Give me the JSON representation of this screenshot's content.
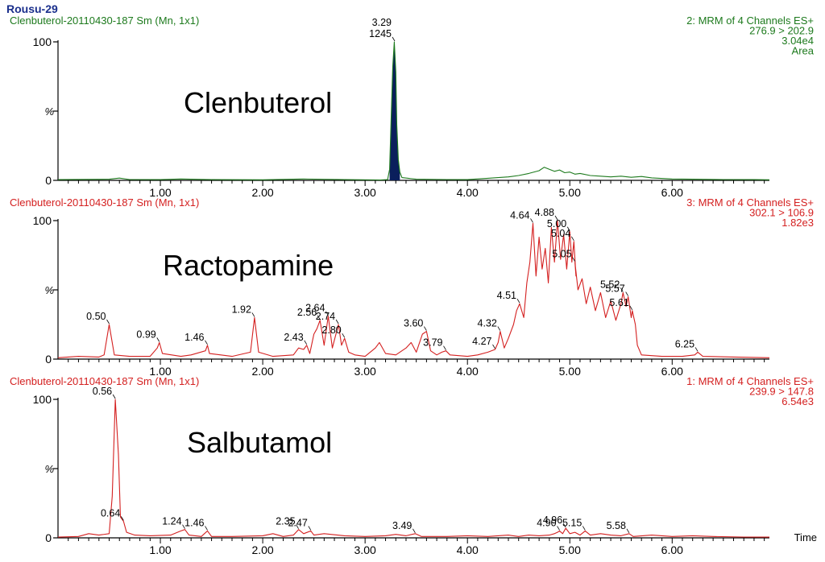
{
  "window_title": "Rousu-29",
  "axis_label": "Time",
  "y_tick_labels": [
    "100",
    "%",
    "0"
  ],
  "colors": {
    "title": "#1a2f8c",
    "green": "#1d7a1d",
    "red": "#d42020",
    "fill": "#0a1f5c",
    "axis": "#000000"
  },
  "chart_data": [
    {
      "type": "line",
      "panel": "top",
      "color": "green",
      "sample_label": "Clenbuterol-20110430-187 Sm (Mn, 1x1)",
      "header_right": [
        "2: MRM of 4 Channels ES+",
        "276.9 > 202.9",
        "3.04e4",
        "Area"
      ],
      "compound": "Clenbuterol",
      "xlim": [
        0.0,
        6.95
      ],
      "ylim": [
        0,
        100
      ],
      "x_ticks": [
        "1.00",
        "2.00",
        "3.00",
        "4.00",
        "5.00",
        "6.00"
      ],
      "trace": [
        [
          0.0,
          0.5
        ],
        [
          0.5,
          0.8
        ],
        [
          0.6,
          1.6
        ],
        [
          0.7,
          0.6
        ],
        [
          1.0,
          0.5
        ],
        [
          1.2,
          1.0
        ],
        [
          1.5,
          0.5
        ],
        [
          2.0,
          0.4
        ],
        [
          2.4,
          1.0
        ],
        [
          2.8,
          0.5
        ],
        [
          3.15,
          0.3
        ],
        [
          3.22,
          0.5
        ],
        [
          3.24,
          8
        ],
        [
          3.255,
          45
        ],
        [
          3.27,
          82
        ],
        [
          3.285,
          100
        ],
        [
          3.3,
          78
        ],
        [
          3.31,
          40
        ],
        [
          3.325,
          15
        ],
        [
          3.34,
          6
        ],
        [
          3.36,
          2
        ],
        [
          3.5,
          0.8
        ],
        [
          3.8,
          0.6
        ],
        [
          4.0,
          0.5
        ],
        [
          4.2,
          1.5
        ],
        [
          4.4,
          2.5
        ],
        [
          4.5,
          3.5
        ],
        [
          4.6,
          5
        ],
        [
          4.7,
          7
        ],
        [
          4.75,
          9.5
        ],
        [
          4.8,
          8
        ],
        [
          4.85,
          6.5
        ],
        [
          4.9,
          7.5
        ],
        [
          4.95,
          5.5
        ],
        [
          5.0,
          6
        ],
        [
          5.05,
          4.5
        ],
        [
          5.1,
          5
        ],
        [
          5.2,
          3.5
        ],
        [
          5.3,
          3
        ],
        [
          5.4,
          2.5
        ],
        [
          5.5,
          3
        ],
        [
          5.6,
          2.2
        ],
        [
          5.7,
          2.8
        ],
        [
          5.8,
          1.8
        ],
        [
          6.0,
          1
        ],
        [
          6.2,
          0.8
        ],
        [
          6.5,
          0.6
        ],
        [
          6.8,
          0.5
        ],
        [
          6.95,
          0.4
        ]
      ],
      "peak_fill": {
        "x_range": [
          3.24,
          3.34
        ]
      },
      "annotations": [
        {
          "x": 3.29,
          "y": 100,
          "lines": [
            "3.29",
            "1245"
          ]
        }
      ]
    },
    {
      "type": "line",
      "panel": "middle",
      "color": "red",
      "sample_label": "Clenbuterol-20110430-187 Sm (Mn, 1x1)",
      "header_right": [
        "3: MRM of 4 Channels ES+",
        "302.1 > 106.9",
        "1.82e3"
      ],
      "compound": "Ractopamine",
      "xlim": [
        0.0,
        6.95
      ],
      "ylim": [
        0,
        100
      ],
      "x_ticks": [
        "1.00",
        "2.00",
        "3.00",
        "4.00",
        "5.00",
        "6.00"
      ],
      "trace": [
        [
          0.0,
          1
        ],
        [
          0.2,
          2
        ],
        [
          0.4,
          1.5
        ],
        [
          0.45,
          3
        ],
        [
          0.5,
          25
        ],
        [
          0.55,
          3
        ],
        [
          0.7,
          2
        ],
        [
          0.9,
          2
        ],
        [
          0.97,
          8
        ],
        [
          0.99,
          12
        ],
        [
          1.02,
          4
        ],
        [
          1.2,
          2
        ],
        [
          1.3,
          3
        ],
        [
          1.44,
          6
        ],
        [
          1.46,
          10
        ],
        [
          1.48,
          4
        ],
        [
          1.7,
          2
        ],
        [
          1.88,
          5
        ],
        [
          1.92,
          30
        ],
        [
          1.96,
          5
        ],
        [
          2.1,
          2
        ],
        [
          2.3,
          3
        ],
        [
          2.35,
          8
        ],
        [
          2.4,
          7
        ],
        [
          2.43,
          10
        ],
        [
          2.46,
          4
        ],
        [
          2.5,
          18
        ],
        [
          2.53,
          22
        ],
        [
          2.56,
          28
        ],
        [
          2.6,
          10
        ],
        [
          2.64,
          31
        ],
        [
          2.68,
          8
        ],
        [
          2.74,
          25
        ],
        [
          2.77,
          10
        ],
        [
          2.8,
          15
        ],
        [
          2.84,
          5
        ],
        [
          2.9,
          3
        ],
        [
          3.0,
          2
        ],
        [
          3.1,
          8
        ],
        [
          3.14,
          12
        ],
        [
          3.2,
          4
        ],
        [
          3.3,
          3
        ],
        [
          3.4,
          8
        ],
        [
          3.45,
          12
        ],
        [
          3.5,
          5
        ],
        [
          3.56,
          18
        ],
        [
          3.6,
          20
        ],
        [
          3.64,
          6
        ],
        [
          3.7,
          3
        ],
        [
          3.75,
          5
        ],
        [
          3.79,
          6
        ],
        [
          3.83,
          3
        ],
        [
          4.0,
          2
        ],
        [
          4.1,
          3
        ],
        [
          4.2,
          5
        ],
        [
          4.27,
          7
        ],
        [
          4.3,
          12
        ],
        [
          4.32,
          20
        ],
        [
          4.36,
          8
        ],
        [
          4.4,
          15
        ],
        [
          4.45,
          25
        ],
        [
          4.48,
          35
        ],
        [
          4.51,
          40
        ],
        [
          4.55,
          30
        ],
        [
          4.58,
          55
        ],
        [
          4.61,
          70
        ],
        [
          4.64,
          98
        ],
        [
          4.67,
          60
        ],
        [
          4.7,
          88
        ],
        [
          4.73,
          65
        ],
        [
          4.76,
          80
        ],
        [
          4.79,
          55
        ],
        [
          4.82,
          95
        ],
        [
          4.85,
          70
        ],
        [
          4.88,
          100
        ],
        [
          4.91,
          72
        ],
        [
          4.94,
          90
        ],
        [
          4.97,
          65
        ],
        [
          5.0,
          92
        ],
        [
          5.02,
          70
        ],
        [
          5.04,
          85
        ],
        [
          5.06,
          60
        ],
        [
          5.05,
          70
        ],
        [
          5.08,
          50
        ],
        [
          5.12,
          58
        ],
        [
          5.16,
          40
        ],
        [
          5.2,
          52
        ],
        [
          5.25,
          35
        ],
        [
          5.3,
          48
        ],
        [
          5.35,
          30
        ],
        [
          5.4,
          42
        ],
        [
          5.45,
          28
        ],
        [
          5.5,
          40
        ],
        [
          5.52,
          48
        ],
        [
          5.55,
          38
        ],
        [
          5.57,
          45
        ],
        [
          5.6,
          30
        ],
        [
          5.61,
          35
        ],
        [
          5.64,
          25
        ],
        [
          5.66,
          10
        ],
        [
          5.7,
          3
        ],
        [
          5.9,
          2
        ],
        [
          6.1,
          2
        ],
        [
          6.22,
          3
        ],
        [
          6.25,
          5
        ],
        [
          6.3,
          2
        ],
        [
          6.6,
          1.5
        ],
        [
          6.95,
          1
        ]
      ],
      "annotations": [
        {
          "x": 0.5,
          "y": 25,
          "lines": [
            "0.50"
          ]
        },
        {
          "x": 0.99,
          "y": 12,
          "lines": [
            "0.99"
          ]
        },
        {
          "x": 1.46,
          "y": 10,
          "lines": [
            "1.46"
          ]
        },
        {
          "x": 1.92,
          "y": 30,
          "lines": [
            "1.92"
          ]
        },
        {
          "x": 2.43,
          "y": 10,
          "lines": [
            "2.43"
          ]
        },
        {
          "x": 2.56,
          "y": 28,
          "lines": [
            "2.56"
          ]
        },
        {
          "x": 2.64,
          "y": 31,
          "lines": [
            "2.64"
          ]
        },
        {
          "x": 2.74,
          "y": 25,
          "lines": [
            "2.74"
          ]
        },
        {
          "x": 2.8,
          "y": 15,
          "lines": [
            "2.80"
          ]
        },
        {
          "x": 3.6,
          "y": 20,
          "lines": [
            "3.60"
          ]
        },
        {
          "x": 3.79,
          "y": 6,
          "lines": [
            "3.79"
          ]
        },
        {
          "x": 4.27,
          "y": 7,
          "lines": [
            "4.27"
          ]
        },
        {
          "x": 4.32,
          "y": 20,
          "lines": [
            "4.32"
          ]
        },
        {
          "x": 4.51,
          "y": 40,
          "lines": [
            "4.51"
          ]
        },
        {
          "x": 4.64,
          "y": 98,
          "lines": [
            "4.64"
          ]
        },
        {
          "x": 4.88,
          "y": 100,
          "lines": [
            "4.88"
          ]
        },
        {
          "x": 5.0,
          "y": 92,
          "lines": [
            "5.00"
          ]
        },
        {
          "x": 5.04,
          "y": 85,
          "lines": [
            "5.04"
          ]
        },
        {
          "x": 5.05,
          "y": 70,
          "lines": [
            "5.05"
          ]
        },
        {
          "x": 5.52,
          "y": 48,
          "lines": [
            "5.52"
          ]
        },
        {
          "x": 5.57,
          "y": 45,
          "lines": [
            "5.57"
          ]
        },
        {
          "x": 5.61,
          "y": 35,
          "lines": [
            "5.61"
          ]
        },
        {
          "x": 6.25,
          "y": 5,
          "lines": [
            "6.25"
          ]
        }
      ]
    },
    {
      "type": "line",
      "panel": "bottom",
      "color": "red",
      "sample_label": "Clenbuterol-20110430-187 Sm (Mn, 1x1)",
      "header_right": [
        "1: MRM of 4 Channels ES+",
        "239.9 > 147.8",
        "6.54e3"
      ],
      "compound": "Salbutamol",
      "xlim": [
        0.0,
        6.95
      ],
      "ylim": [
        0,
        100
      ],
      "x_ticks": [
        "1.00",
        "2.00",
        "3.00",
        "4.00",
        "5.00",
        "6.00"
      ],
      "trace": [
        [
          0.0,
          0.5
        ],
        [
          0.2,
          1
        ],
        [
          0.3,
          3
        ],
        [
          0.4,
          2
        ],
        [
          0.5,
          3
        ],
        [
          0.53,
          30
        ],
        [
          0.56,
          100
        ],
        [
          0.59,
          60
        ],
        [
          0.61,
          15
        ],
        [
          0.64,
          12
        ],
        [
          0.67,
          4
        ],
        [
          0.75,
          2
        ],
        [
          0.9,
          1.5
        ],
        [
          1.1,
          2
        ],
        [
          1.2,
          5
        ],
        [
          1.24,
          6
        ],
        [
          1.28,
          2
        ],
        [
          1.4,
          1
        ],
        [
          1.46,
          5
        ],
        [
          1.5,
          1
        ],
        [
          1.7,
          1
        ],
        [
          2.0,
          1.5
        ],
        [
          2.1,
          3
        ],
        [
          2.2,
          1
        ],
        [
          2.3,
          2
        ],
        [
          2.35,
          6
        ],
        [
          2.4,
          3
        ],
        [
          2.47,
          5
        ],
        [
          2.5,
          2
        ],
        [
          2.6,
          3
        ],
        [
          2.8,
          1.5
        ],
        [
          3.0,
          1
        ],
        [
          3.2,
          1.5
        ],
        [
          3.3,
          2.5
        ],
        [
          3.4,
          1.5
        ],
        [
          3.49,
          3
        ],
        [
          3.55,
          1
        ],
        [
          3.8,
          1
        ],
        [
          4.0,
          1.5
        ],
        [
          4.2,
          1
        ],
        [
          4.4,
          2
        ],
        [
          4.5,
          1
        ],
        [
          4.6,
          2
        ],
        [
          4.7,
          1.5
        ],
        [
          4.8,
          2
        ],
        [
          4.85,
          3
        ],
        [
          4.88,
          4
        ],
        [
          4.9,
          5
        ],
        [
          4.93,
          3
        ],
        [
          4.96,
          7
        ],
        [
          5.0,
          3
        ],
        [
          5.05,
          4
        ],
        [
          5.1,
          2
        ],
        [
          5.15,
          5
        ],
        [
          5.2,
          2
        ],
        [
          5.3,
          3
        ],
        [
          5.4,
          2
        ],
        [
          5.5,
          1.5
        ],
        [
          5.58,
          3
        ],
        [
          5.62,
          1
        ],
        [
          5.8,
          2
        ],
        [
          6.0,
          1
        ],
        [
          6.2,
          1.5
        ],
        [
          6.4,
          1
        ],
        [
          6.7,
          0.6
        ],
        [
          6.95,
          0.5
        ]
      ],
      "annotations": [
        {
          "x": 0.56,
          "y": 100,
          "lines": [
            "0.56"
          ]
        },
        {
          "x": 0.64,
          "y": 12,
          "lines": [
            "0.64"
          ]
        },
        {
          "x": 1.24,
          "y": 6,
          "lines": [
            "1.24"
          ]
        },
        {
          "x": 1.46,
          "y": 5,
          "lines": [
            "1.46"
          ]
        },
        {
          "x": 2.35,
          "y": 6,
          "lines": [
            "2.35"
          ]
        },
        {
          "x": 2.47,
          "y": 5,
          "lines": [
            "2.47"
          ]
        },
        {
          "x": 3.49,
          "y": 3,
          "lines": [
            "3.49"
          ]
        },
        {
          "x": 4.9,
          "y": 5,
          "lines": [
            "4.90"
          ]
        },
        {
          "x": 4.96,
          "y": 7,
          "lines": [
            "4.96"
          ]
        },
        {
          "x": 5.15,
          "y": 5,
          "lines": [
            "5.15"
          ]
        },
        {
          "x": 5.58,
          "y": 3,
          "lines": [
            "5.58"
          ]
        }
      ]
    }
  ]
}
